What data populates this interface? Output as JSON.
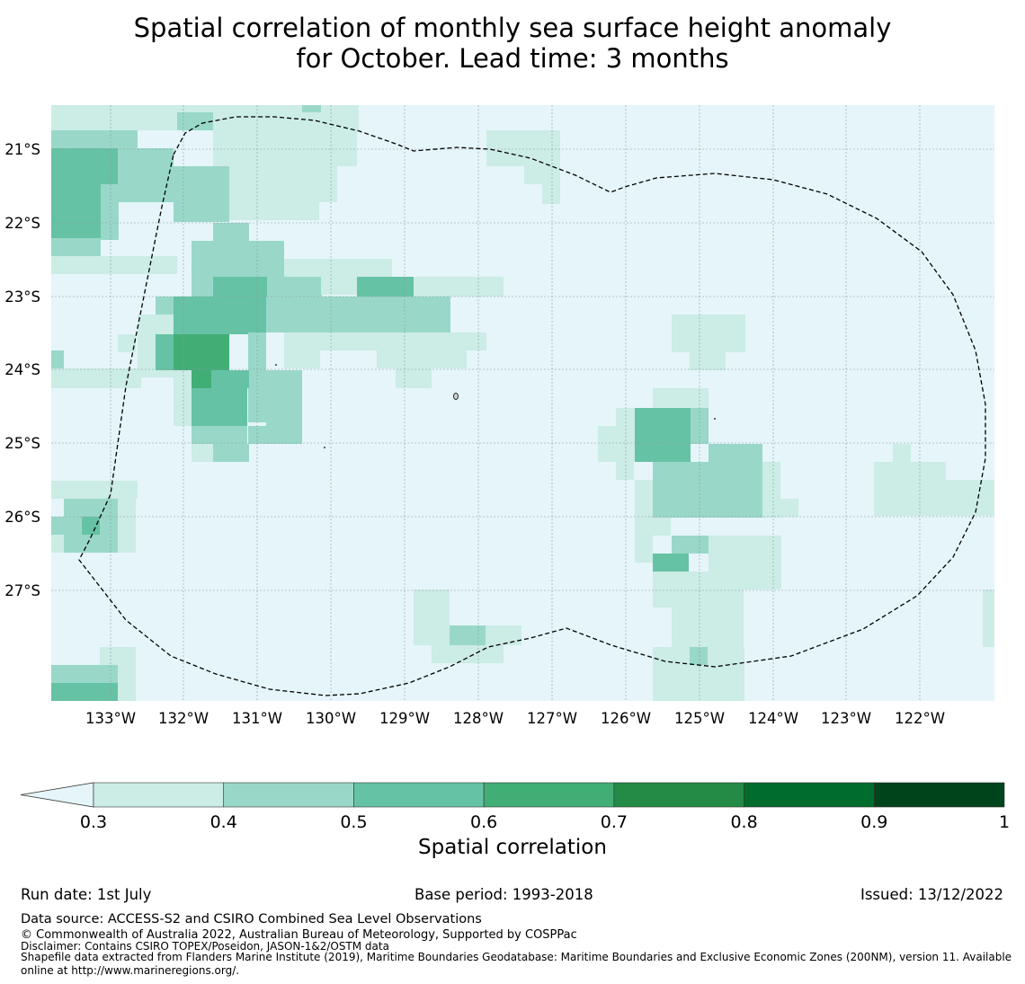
{
  "title": {
    "line1": "Spatial correlation of monthly sea surface height anomaly",
    "line2": "for October. Lead time: 3 months"
  },
  "map": {
    "lat_labels": [
      "21°S",
      "22°S",
      "23°S",
      "24°S",
      "25°S",
      "26°S",
      "27°S"
    ],
    "lon_labels": [
      "133°W",
      "132°W",
      "131°W",
      "130°W",
      "129°W",
      "128°W",
      "127°W",
      "126°W",
      "125°W",
      "124°W",
      "123°W",
      "122°W"
    ],
    "background_color": "#e5f5f9",
    "gridlines": true
  },
  "colorbar": {
    "label": "Spatial correlation",
    "ticks": [
      "0.3",
      "0.4",
      "0.5",
      "0.6",
      "0.7",
      "0.8",
      "0.9",
      "1"
    ],
    "colors": [
      "#ccece6",
      "#99d8c9",
      "#66c2a4",
      "#41ae76",
      "#238b45",
      "#006d2c",
      "#00441b"
    ],
    "extend": "min"
  },
  "footer": {
    "run_date": "Run date: 1st July",
    "base_period": "Base period: 1993-2018",
    "issued": "Issued: 13/12/2022",
    "data_source": "Data source: ACCESS-S2 and CSIRO Combined Sea Level Observations",
    "copyright": "© Commonwealth of Australia 2022, Australian Bureau of Meteorology, Supported by COSPPac",
    "disclaimer": "Disclaimer: Contains CSIRO TOPEX/Poseidon, JASON-1&2/OSTM data",
    "shapefile_line1": "Shapefile data extracted from Flanders Marine Institute (2019), Maritime Boundaries Geodatabase: Maritime Boundaries and Exclusive Economic Zones (200NM), version 11. Available",
    "shapefile_line2": "online at http://www.marineregions.org/."
  }
}
